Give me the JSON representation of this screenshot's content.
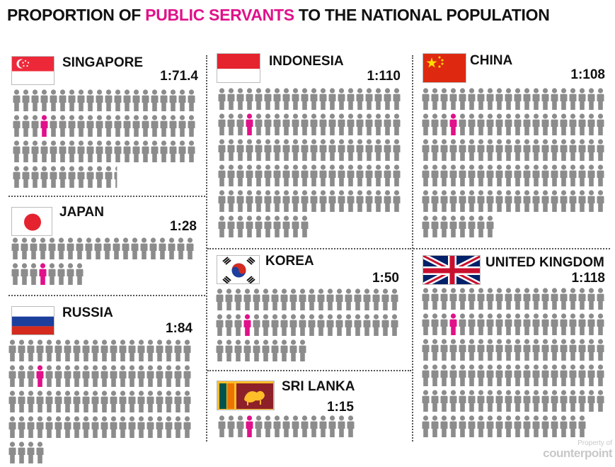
{
  "title": {
    "part1": "PROPORTION OF ",
    "highlight": "PUBLIC  SERVANTS",
    "part2": " TO THE NATIONAL POPULATION"
  },
  "colors": {
    "person": "#8c8c8c",
    "public_servant": "#e0118a",
    "highlight_text": "#e0118a"
  },
  "watermark": {
    "line1": "Property of",
    "line2": "counterpoint"
  },
  "chart_data": {
    "type": "pictogram",
    "unit": "1 public servant per N people",
    "categories": [
      "SINGAPORE",
      "JAPAN",
      "RUSSIA",
      "INDONESIA",
      "KOREA",
      "SRI LANKA",
      "CHINA",
      "UNITED KINGDOM"
    ],
    "values": [
      71.4,
      28,
      84,
      110,
      50,
      15,
      108,
      118
    ],
    "ratio_labels": [
      "1:71.4",
      "1:28",
      "1:84",
      "1:110",
      "1:50",
      "1:15",
      "1:108",
      "1:118"
    ]
  },
  "panels": [
    {
      "name": "SINGAPORE",
      "ratio": "1:71.4",
      "flag": "singapore-flag-icon"
    },
    {
      "name": "JAPAN",
      "ratio": "1:28",
      "flag": "japan-flag-icon"
    },
    {
      "name": "RUSSIA",
      "ratio": "1:84",
      "flag": "russia-flag-icon"
    },
    {
      "name": "INDONESIA",
      "ratio": "1:110",
      "flag": "indonesia-flag-icon"
    },
    {
      "name": "KOREA",
      "ratio": "1:50",
      "flag": "korea-flag-icon"
    },
    {
      "name": "SRI LANKA",
      "ratio": "1:15",
      "flag": "sri-lanka-flag-icon"
    },
    {
      "name": "CHINA",
      "ratio": "1:108",
      "flag": "china-flag-icon"
    },
    {
      "name": "UNITED KINGDOM",
      "ratio": "1:118",
      "flag": "uk-flag-icon"
    }
  ]
}
